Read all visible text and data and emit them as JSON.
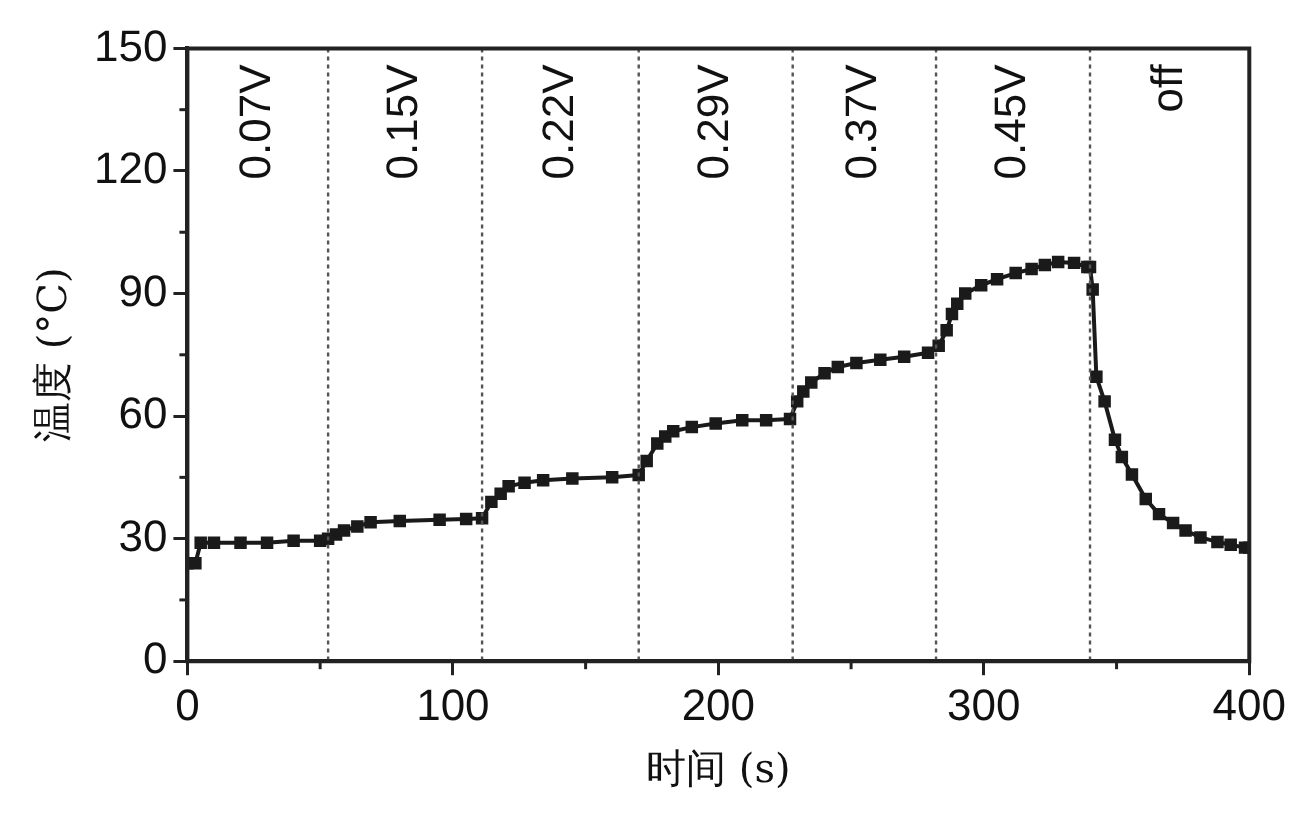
{
  "chart_data": {
    "type": "line",
    "xlabel": "时间 (s)",
    "ylabel": "温度 (°C)",
    "xlim": [
      0,
      400
    ],
    "xticks": [
      0,
      100,
      200,
      300,
      400
    ],
    "ylim": [
      0,
      150
    ],
    "yticks": [
      0,
      30,
      60,
      90,
      120,
      150
    ],
    "grid": false,
    "legend": false,
    "marker": "square",
    "series": [
      {
        "color": "#1a1a1a",
        "x": [
          0,
          3,
          5,
          10,
          20,
          30,
          40,
          50,
          53,
          56,
          59,
          64,
          69,
          80,
          95,
          105,
          111,
          114.5,
          118,
          121,
          127,
          134,
          145,
          160,
          170,
          173,
          177,
          180,
          183,
          190,
          199,
          209,
          218,
          227,
          229.7,
          232,
          235,
          240,
          245,
          252,
          261,
          270,
          279,
          283,
          286,
          288,
          290,
          293,
          299,
          305,
          312,
          318,
          323,
          328,
          334,
          339,
          340,
          341,
          342.4,
          345.5,
          349.4,
          352,
          355.8,
          361,
          366,
          371.3,
          376,
          381.6,
          388,
          393,
          398.4,
          400
        ],
        "values": [
          24,
          24,
          29,
          29,
          29,
          29,
          29.5,
          29.5,
          30,
          31,
          32,
          33,
          34,
          34.3,
          34.6,
          34.8,
          35,
          39,
          41,
          42.8,
          43.7,
          44.3,
          44.7,
          45,
          45.6,
          49,
          53.3,
          55,
          56.3,
          57.3,
          58.2,
          59,
          59,
          59.3,
          63.6,
          66,
          68.2,
          70.5,
          72,
          73,
          73.8,
          74.5,
          75.5,
          77.2,
          81,
          85,
          87.5,
          90,
          92,
          93.5,
          95,
          96,
          97,
          97.7,
          97.5,
          96.5,
          96.5,
          91,
          69.6,
          63.6,
          54.2,
          50,
          45.7,
          39.7,
          36,
          33.8,
          32,
          30.3,
          29.2,
          28.5,
          27.8,
          27.8
        ]
      }
    ],
    "ref_lines": [
      {
        "axis": "x",
        "value": 53,
        "line_style": "dotted",
        "color": "#555555"
      },
      {
        "axis": "x",
        "value": 111,
        "line_style": "dotted",
        "color": "#555555"
      },
      {
        "axis": "x",
        "value": 170,
        "line_style": "dotted",
        "color": "#555555"
      },
      {
        "axis": "x",
        "value": 228,
        "line_style": "dotted",
        "color": "#555555"
      },
      {
        "axis": "x",
        "value": 282,
        "line_style": "dotted",
        "color": "#555555"
      },
      {
        "axis": "x",
        "value": 340,
        "line_style": "dotted",
        "color": "#555555"
      }
    ],
    "annotations": [
      "0.07V",
      "0.15V",
      "0.22V",
      "0.29V",
      "0.37V",
      "0.45V",
      "off"
    ]
  }
}
